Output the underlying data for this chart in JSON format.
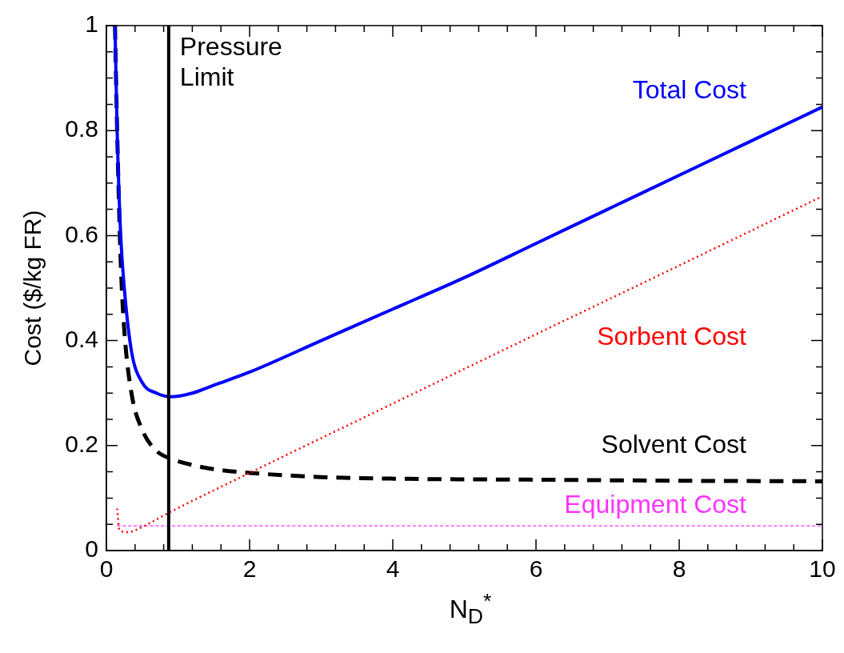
{
  "chart_data": {
    "type": "line",
    "xlabel": "N$_{D}$$^{*}$",
    "ylabel": "Cost ($/kg FR)",
    "xlim": [
      0,
      10
    ],
    "ylim": [
      0,
      1
    ],
    "xticks": [
      0,
      {
        "value": 0.4,
        "label": null
      },
      {
        "value": 0.8,
        "label": null
      },
      {
        "value": 1.2,
        "label": null
      },
      {
        "value": 1.6,
        "label": null
      },
      2,
      {
        "value": 2.4,
        "label": null
      },
      {
        "value": 2.8,
        "label": null
      },
      {
        "value": 3.2,
        "label": null
      },
      {
        "value": 3.6,
        "label": null
      },
      4,
      {
        "value": 4.4,
        "label": null
      },
      {
        "value": 4.8,
        "label": null
      },
      {
        "value": 5.2,
        "label": null
      },
      {
        "value": 5.6,
        "label": null
      },
      6,
      {
        "value": 6.4,
        "label": null
      },
      {
        "value": 6.8,
        "label": null
      },
      {
        "value": 7.2,
        "label": null
      },
      {
        "value": 7.6,
        "label": null
      },
      8,
      {
        "value": 8.4,
        "label": null
      },
      {
        "value": 8.8,
        "label": null
      },
      {
        "value": 9.2,
        "label": null
      },
      {
        "value": 9.6,
        "label": null
      },
      10
    ],
    "yticks": [
      0,
      {
        "value": 0.05,
        "label": null
      },
      {
        "value": 0.1,
        "label": null
      },
      {
        "value": 0.15,
        "label": null
      },
      0.2,
      {
        "value": 0.25,
        "label": null
      },
      {
        "value": 0.3,
        "label": null
      },
      {
        "value": 0.35,
        "label": null
      },
      0.4,
      {
        "value": 0.45,
        "label": null
      },
      {
        "value": 0.5,
        "label": null
      },
      {
        "value": 0.55,
        "label": null
      },
      0.6,
      {
        "value": 0.65,
        "label": null
      },
      {
        "value": 0.7,
        "label": null
      },
      {
        "value": 0.75,
        "label": null
      },
      0.8,
      {
        "value": 0.85,
        "label": null
      },
      {
        "value": 0.9,
        "label": null
      },
      {
        "value": 0.95,
        "label": null
      },
      1
    ],
    "grid": false,
    "legend": "right",
    "marker": "none",
    "series": [
      {
        "name": "Total Cost",
        "color": "#0000ff",
        "line_style": "solid",
        "x": [
          0.12,
          0.15,
          0.2,
          0.25,
          0.35,
          0.5,
          0.7,
          0.9,
          1.2,
          1.5,
          2,
          3,
          4,
          5,
          6,
          7,
          8,
          9,
          10
        ],
        "values": [
          1,
          0.8,
          0.6,
          0.5,
          0.38,
          0.32,
          0.3,
          0.293,
          0.3,
          0.315,
          0.34,
          0.4,
          0.46,
          0.52,
          0.585,
          0.65,
          0.715,
          0.78,
          0.845
        ]
      },
      {
        "name": "Sorbent Cost",
        "color": "#ff0000",
        "line_style": "dotted",
        "x": [
          0.15,
          0.18,
          0.3,
          0.5,
          0.87,
          2,
          4,
          6,
          8,
          10
        ],
        "values": [
          0.08,
          0.04,
          0.035,
          0.045,
          0.072,
          0.148,
          0.28,
          0.412,
          0.543,
          0.675
        ]
      },
      {
        "name": "Solvent Cost",
        "color": "#000000",
        "line_style": "dashed",
        "x": [
          0.12,
          0.15,
          0.2,
          0.25,
          0.35,
          0.5,
          0.7,
          0.9,
          1.2,
          1.5,
          2,
          3,
          4,
          6,
          8,
          10
        ],
        "values": [
          1,
          0.8,
          0.55,
          0.42,
          0.3,
          0.23,
          0.19,
          0.175,
          0.163,
          0.155,
          0.148,
          0.14,
          0.137,
          0.135,
          0.133,
          0.132
        ]
      },
      {
        "name": "Equipment Cost",
        "color": "#ff33ff",
        "line_style": "dashed",
        "x": [
          0.15,
          10
        ],
        "values": [
          0.047,
          0.047
        ]
      }
    ],
    "ref_lines": [
      {
        "axis": "x",
        "value": 0.87,
        "label": "Pressure Limit",
        "color": "#000000",
        "line_style": "solid"
      }
    ]
  }
}
